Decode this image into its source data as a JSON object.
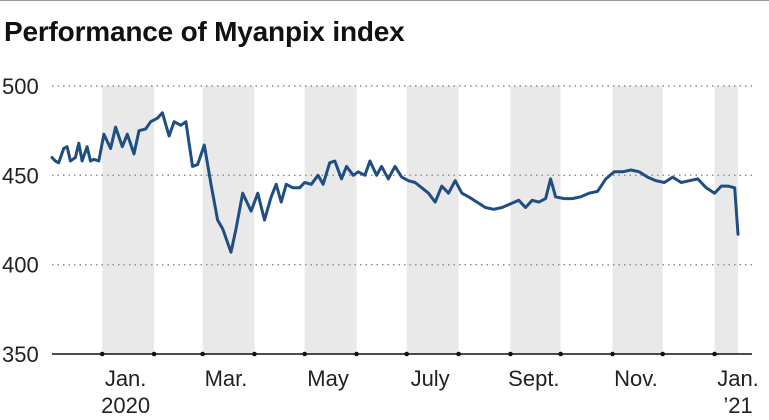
{
  "chart_data": {
    "type": "line",
    "title": "Performance of Myanpix index",
    "ylim": [
      350,
      500
    ],
    "yticks": [
      "500",
      "450",
      "400",
      "350"
    ],
    "xlim": [
      "2019-12-02",
      "2021-01-15"
    ],
    "xtick_labels": [
      {
        "month": "Jan.",
        "year": "2020",
        "date": "2020-01-15"
      },
      {
        "month": "Mar.",
        "year": "",
        "date": "2020-03-15"
      },
      {
        "month": "May",
        "year": "",
        "date": "2020-05-15"
      },
      {
        "month": "July",
        "year": "",
        "date": "2020-07-15"
      },
      {
        "month": "Sept.",
        "year": "",
        "date": "2020-09-15"
      },
      {
        "month": "Nov.",
        "year": "",
        "date": "2020-11-15"
      },
      {
        "month": "Jan.",
        "year": "’21",
        "date": "2021-01-15"
      }
    ],
    "shaded_months": [
      "2020-01",
      "2020-03",
      "2020-05",
      "2020-07",
      "2020-09",
      "2020-11",
      "2021-01"
    ],
    "grid": true,
    "line_color": "#1f4e82",
    "shade_color": "#e9e9e9",
    "series": [
      {
        "points": [
          [
            "2019-12-02",
            460
          ],
          [
            "2019-12-04",
            458
          ],
          [
            "2019-12-06",
            457
          ],
          [
            "2019-12-09",
            465
          ],
          [
            "2019-12-11",
            466
          ],
          [
            "2019-12-13",
            458
          ],
          [
            "2019-12-16",
            460
          ],
          [
            "2019-12-18",
            468
          ],
          [
            "2019-12-20",
            458
          ],
          [
            "2019-12-23",
            466
          ],
          [
            "2019-12-25",
            458
          ],
          [
            "2019-12-27",
            459
          ],
          [
            "2019-12-30",
            458
          ],
          [
            "2020-01-02",
            473
          ],
          [
            "2020-01-06",
            465
          ],
          [
            "2020-01-09",
            477
          ],
          [
            "2020-01-13",
            466
          ],
          [
            "2020-01-16",
            473
          ],
          [
            "2020-01-20",
            462
          ],
          [
            "2020-01-23",
            475
          ],
          [
            "2020-01-27",
            476
          ],
          [
            "2020-01-30",
            480
          ],
          [
            "2020-02-03",
            482
          ],
          [
            "2020-02-06",
            485
          ],
          [
            "2020-02-10",
            472
          ],
          [
            "2020-02-13",
            480
          ],
          [
            "2020-02-17",
            478
          ],
          [
            "2020-02-20",
            480
          ],
          [
            "2020-02-24",
            455
          ],
          [
            "2020-02-27",
            456
          ],
          [
            "2020-03-02",
            467
          ],
          [
            "2020-03-06",
            445
          ],
          [
            "2020-03-10",
            425
          ],
          [
            "2020-03-13",
            420
          ],
          [
            "2020-03-18",
            407
          ],
          [
            "2020-03-21",
            420
          ],
          [
            "2020-03-25",
            440
          ],
          [
            "2020-03-30",
            430
          ],
          [
            "2020-04-03",
            440
          ],
          [
            "2020-04-07",
            425
          ],
          [
            "2020-04-11",
            438
          ],
          [
            "2020-04-14",
            445
          ],
          [
            "2020-04-17",
            435
          ],
          [
            "2020-04-20",
            445
          ],
          [
            "2020-04-24",
            443
          ],
          [
            "2020-04-28",
            443
          ],
          [
            "2020-05-01",
            446
          ],
          [
            "2020-05-05",
            445
          ],
          [
            "2020-05-09",
            450
          ],
          [
            "2020-05-12",
            445
          ],
          [
            "2020-05-16",
            457
          ],
          [
            "2020-05-19",
            458
          ],
          [
            "2020-05-23",
            448
          ],
          [
            "2020-05-26",
            455
          ],
          [
            "2020-05-30",
            450
          ],
          [
            "2020-06-02",
            452
          ],
          [
            "2020-06-06",
            450
          ],
          [
            "2020-06-09",
            458
          ],
          [
            "2020-06-13",
            450
          ],
          [
            "2020-06-16",
            455
          ],
          [
            "2020-06-20",
            448
          ],
          [
            "2020-06-24",
            455
          ],
          [
            "2020-06-28",
            449
          ],
          [
            "2020-07-02",
            447
          ],
          [
            "2020-07-06",
            446
          ],
          [
            "2020-07-10",
            443
          ],
          [
            "2020-07-14",
            440
          ],
          [
            "2020-07-18",
            435
          ],
          [
            "2020-07-22",
            444
          ],
          [
            "2020-07-26",
            440
          ],
          [
            "2020-07-30",
            447
          ],
          [
            "2020-08-03",
            440
          ],
          [
            "2020-08-07",
            438
          ],
          [
            "2020-08-12",
            435
          ],
          [
            "2020-08-17",
            432
          ],
          [
            "2020-08-22",
            431
          ],
          [
            "2020-08-27",
            432
          ],
          [
            "2020-09-01",
            434
          ],
          [
            "2020-09-06",
            436
          ],
          [
            "2020-09-10",
            432
          ],
          [
            "2020-09-14",
            436
          ],
          [
            "2020-09-18",
            435
          ],
          [
            "2020-09-22",
            437
          ],
          [
            "2020-09-25",
            448
          ],
          [
            "2020-09-28",
            438
          ],
          [
            "2020-10-03",
            437
          ],
          [
            "2020-10-08",
            437
          ],
          [
            "2020-10-13",
            438
          ],
          [
            "2020-10-18",
            440
          ],
          [
            "2020-10-23",
            441
          ],
          [
            "2020-10-28",
            448
          ],
          [
            "2020-11-02",
            452
          ],
          [
            "2020-11-07",
            452
          ],
          [
            "2020-11-12",
            453
          ],
          [
            "2020-11-17",
            452
          ],
          [
            "2020-11-22",
            449
          ],
          [
            "2020-11-27",
            447
          ],
          [
            "2020-12-02",
            446
          ],
          [
            "2020-12-07",
            449
          ],
          [
            "2020-12-12",
            446
          ],
          [
            "2020-12-17",
            447
          ],
          [
            "2020-12-22",
            448
          ],
          [
            "2020-12-27",
            443
          ],
          [
            "2021-01-01",
            440
          ],
          [
            "2021-01-05",
            444
          ],
          [
            "2021-01-09",
            444
          ],
          [
            "2021-01-13",
            443
          ],
          [
            "2021-01-15",
            417
          ]
        ]
      }
    ]
  }
}
